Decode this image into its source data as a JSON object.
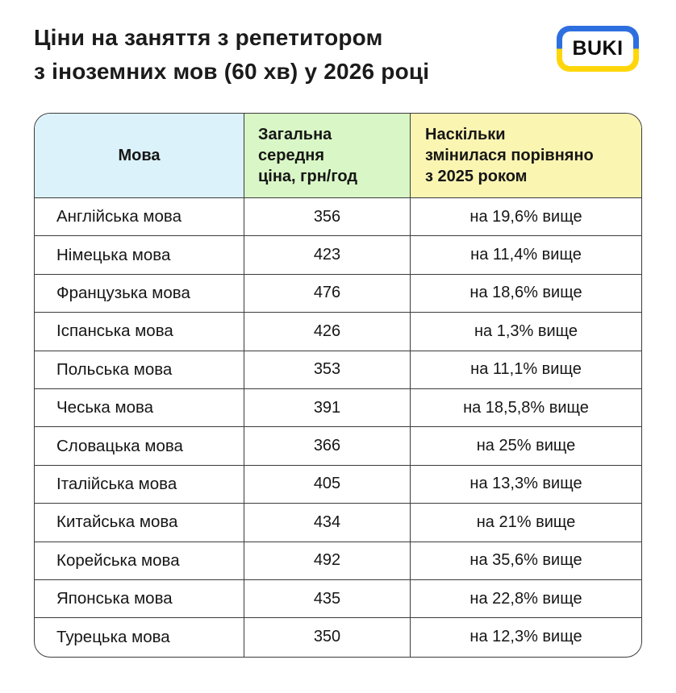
{
  "header": {
    "title": "Ціни на заняття з репетитором\nз іноземних мов (60 хв) у 2026 році",
    "logo_text": "BUKI"
  },
  "colors": {
    "language_column_bg": "#dbf2fb",
    "price_column_bg": "#d9f7c6",
    "change_column_bg": "#fbf5b2",
    "table_border": "#3b3b3b",
    "logo_blue": "#2e6fdf",
    "logo_yellow": "#ffd60a"
  },
  "table": {
    "columns": [
      {
        "label": "Мова"
      },
      {
        "label": "Загальна\nсередня\nціна, грн/год"
      },
      {
        "label": "Наскільки\nзмінилася порівняно\nз 2025 роком"
      }
    ],
    "rows": [
      {
        "language": "Англійська мова",
        "price": "356",
        "change": "на 19,6% вище"
      },
      {
        "language": "Німецька мова",
        "price": "423",
        "change": "на 11,4% вище"
      },
      {
        "language": "Французька мова",
        "price": "476",
        "change": "на 18,6% вище"
      },
      {
        "language": "Іспанська мова",
        "price": "426",
        "change": "на 1,3% вище"
      },
      {
        "language": "Польська мова",
        "price": "353",
        "change": "на 11,1% вище"
      },
      {
        "language": "Чеська мова",
        "price": "391",
        "change": "на 18,5,8% вище"
      },
      {
        "language": "Словацька мова",
        "price": "366",
        "change": "на 25% вище"
      },
      {
        "language": "Італійська мова",
        "price": "405",
        "change": "на 13,3% вище"
      },
      {
        "language": "Китайська мова",
        "price": "434",
        "change": "на 21% вище"
      },
      {
        "language": "Корейська мова",
        "price": "492",
        "change": "на 35,6% вище"
      },
      {
        "language": "Японська мова",
        "price": "435",
        "change": "на 22,8% вище"
      },
      {
        "language": "Турецька мова",
        "price": "350",
        "change": "на 12,3% вище"
      }
    ]
  },
  "chart_data": {
    "type": "table",
    "title": "Ціни на заняття з репетитором з іноземних мов (60 хв) у 2026 році",
    "columns": [
      "Мова",
      "Загальна середня ціна, грн/год",
      "Наскільки змінилася порівняно з 2025 роком"
    ],
    "rows": [
      [
        "Англійська мова",
        356,
        "на 19,6% вище"
      ],
      [
        "Німецька мова",
        423,
        "на 11,4% вище"
      ],
      [
        "Французька мова",
        476,
        "на 18,6% вище"
      ],
      [
        "Іспанська мова",
        426,
        "на 1,3% вище"
      ],
      [
        "Польська мова",
        353,
        "на 11,1% вище"
      ],
      [
        "Чеська мова",
        391,
        "на 18,5,8% вище"
      ],
      [
        "Словацька мова",
        366,
        "на 25% вище"
      ],
      [
        "Італійська мова",
        405,
        "на 13,3% вище"
      ],
      [
        "Китайська мова",
        434,
        "на 21% вище"
      ],
      [
        "Корейська мова",
        492,
        "на 35,6% вище"
      ],
      [
        "Японська мова",
        435,
        "на 22,8% вище"
      ],
      [
        "Турецька мова",
        350,
        "на 12,3% вище"
      ]
    ]
  }
}
